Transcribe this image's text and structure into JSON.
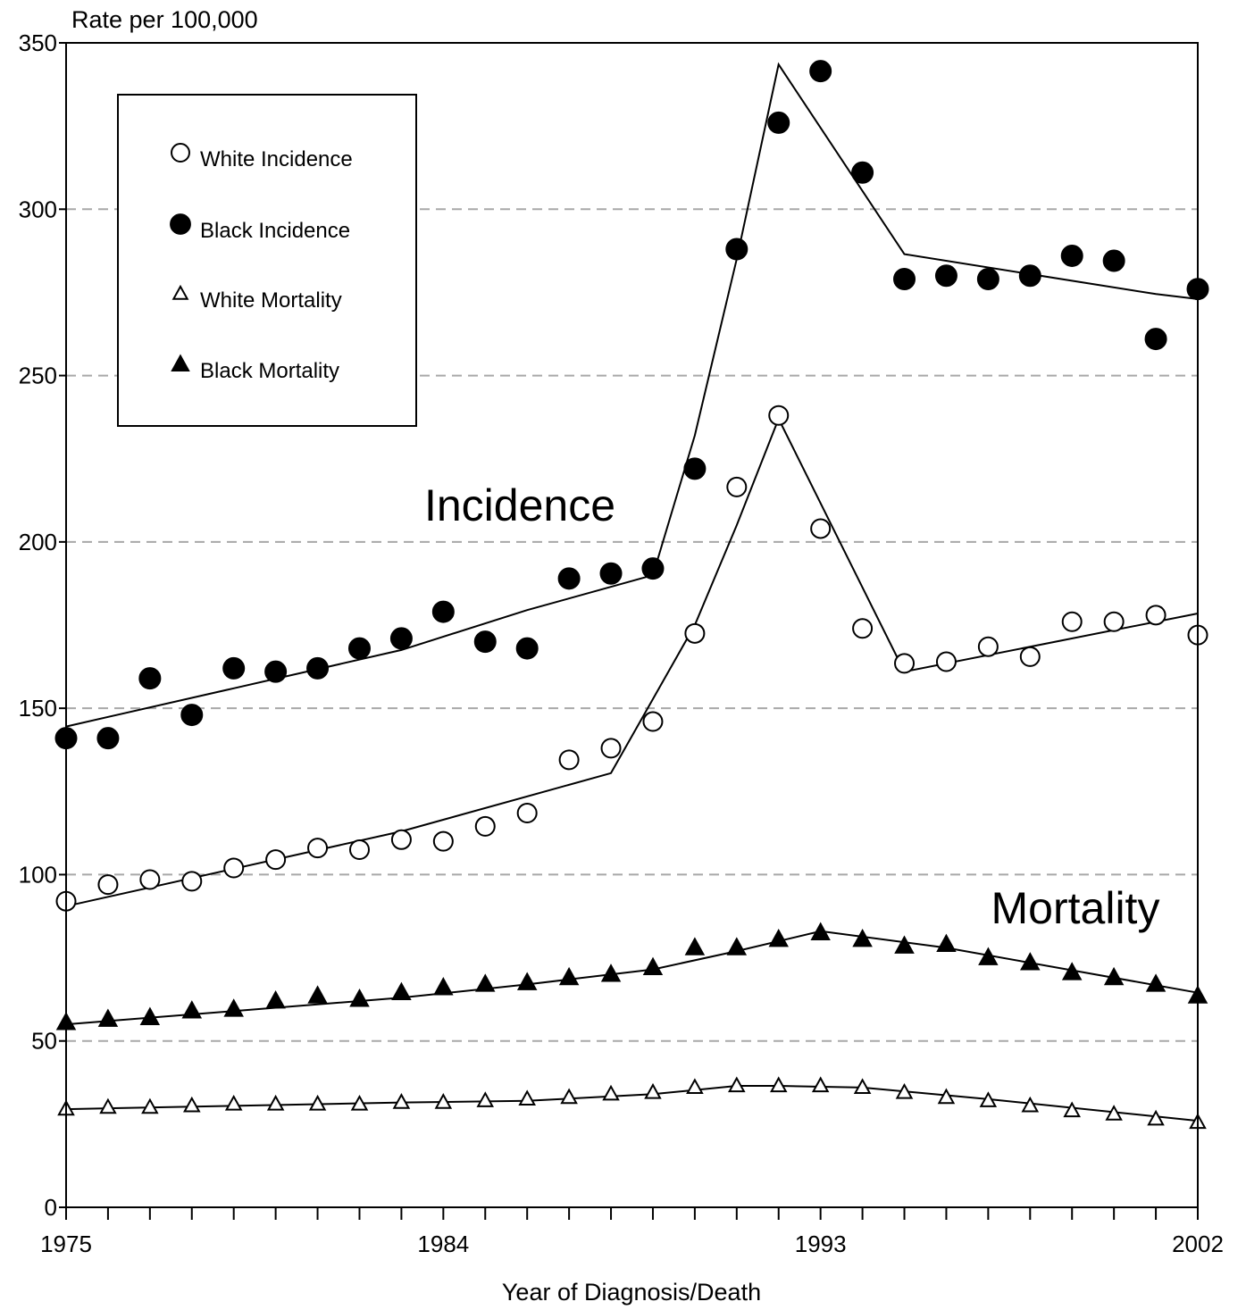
{
  "chart_data": {
    "type": "scatter",
    "ylabel": "Rate per 100,000",
    "xlabel": "Year of Diagnosis/Death",
    "xlim": [
      1975,
      2002
    ],
    "ylim": [
      0,
      350
    ],
    "x_ticks": [
      1975,
      1984,
      1993,
      2002
    ],
    "y_ticks": [
      0,
      50,
      100,
      150,
      200,
      250,
      300,
      350
    ],
    "grid": "horizontal dashed",
    "legend_position": "top-left",
    "annotations": [
      "Incidence",
      "Mortality"
    ],
    "x": [
      1975,
      1976,
      1977,
      1978,
      1979,
      1980,
      1981,
      1982,
      1983,
      1984,
      1985,
      1986,
      1987,
      1988,
      1989,
      1990,
      1991,
      1992,
      1993,
      1994,
      1995,
      1996,
      1997,
      1998,
      1999,
      2000,
      2001,
      2002
    ],
    "series": [
      {
        "name": "White Incidence",
        "marker": "open-circle",
        "values": [
          92.0,
          97.0,
          98.5,
          98.0,
          102.0,
          104.5,
          108.0,
          107.5,
          110.5,
          110.0,
          114.5,
          118.5,
          134.5,
          138.0,
          146.0,
          172.5,
          216.5,
          238.0,
          204.0,
          174.0,
          163.5,
          164.0,
          168.5,
          165.5,
          176.0,
          176.0,
          178.0,
          172.0
        ],
        "fit": [
          [
            1975,
            90.5
          ],
          [
            1983,
            113.0
          ],
          [
            1988,
            130.5
          ],
          [
            1990,
            175.0
          ],
          [
            1991,
            205.0
          ],
          [
            1992,
            237.0
          ],
          [
            1995,
            161.0
          ],
          [
            2002,
            178.5
          ]
        ]
      },
      {
        "name": "Black Incidence",
        "marker": "filled-circle",
        "values": [
          141.0,
          141.0,
          159.0,
          148.0,
          162.0,
          161.0,
          162.0,
          168.0,
          171.0,
          179.0,
          170.0,
          168.0,
          189.0,
          190.5,
          192.0,
          222.0,
          288.0,
          326.0,
          341.5,
          311.0,
          279.0,
          280.0,
          279.0,
          280.0,
          286.0,
          284.5,
          261.0,
          276.0
        ],
        "fit": [
          [
            1975,
            144.5
          ],
          [
            1979,
            156.0
          ],
          [
            1983,
            167.5
          ],
          [
            1986,
            179.5
          ],
          [
            1989,
            190.0
          ],
          [
            1990,
            232.0
          ],
          [
            1991,
            285.0
          ],
          [
            1992,
            343.5
          ],
          [
            1995,
            286.5
          ],
          [
            2001,
            274.5
          ],
          [
            2002,
            273.0
          ]
        ]
      },
      {
        "name": "White Mortality",
        "marker": "open-triangle",
        "values": [
          29.5,
          30.0,
          30.0,
          30.5,
          31.0,
          31.0,
          31.0,
          31.0,
          31.5,
          31.5,
          32.0,
          32.5,
          33.0,
          34.0,
          34.5,
          36.0,
          36.5,
          36.5,
          36.5,
          36.0,
          34.5,
          33.0,
          32.0,
          30.5,
          29.0,
          28.0,
          26.5,
          25.5
        ],
        "fit": [
          [
            1975,
            29.5
          ],
          [
            1979,
            30.5
          ],
          [
            1983,
            31.5
          ],
          [
            1986,
            32.0
          ],
          [
            1989,
            34.0
          ],
          [
            1991,
            36.5
          ],
          [
            1992,
            36.5
          ],
          [
            1994,
            36.0
          ],
          [
            1997,
            32.5
          ],
          [
            2002,
            26.0
          ]
        ]
      },
      {
        "name": "Black Mortality",
        "marker": "filled-triangle",
        "values": [
          55.5,
          56.5,
          57.0,
          59.0,
          59.5,
          62.0,
          63.5,
          62.5,
          64.5,
          66.0,
          67.0,
          67.5,
          69.0,
          70.0,
          72.0,
          78.0,
          78.0,
          80.5,
          82.5,
          80.5,
          78.5,
          79.0,
          75.0,
          73.5,
          70.5,
          69.0,
          67.0,
          63.5
        ],
        "fit": [
          [
            1975,
            55.0
          ],
          [
            1979,
            59.0
          ],
          [
            1983,
            63.0
          ],
          [
            1986,
            67.0
          ],
          [
            1989,
            71.5
          ],
          [
            1991,
            77.0
          ],
          [
            1993,
            83.0
          ],
          [
            1996,
            78.0
          ],
          [
            2002,
            64.5
          ]
        ]
      }
    ]
  }
}
